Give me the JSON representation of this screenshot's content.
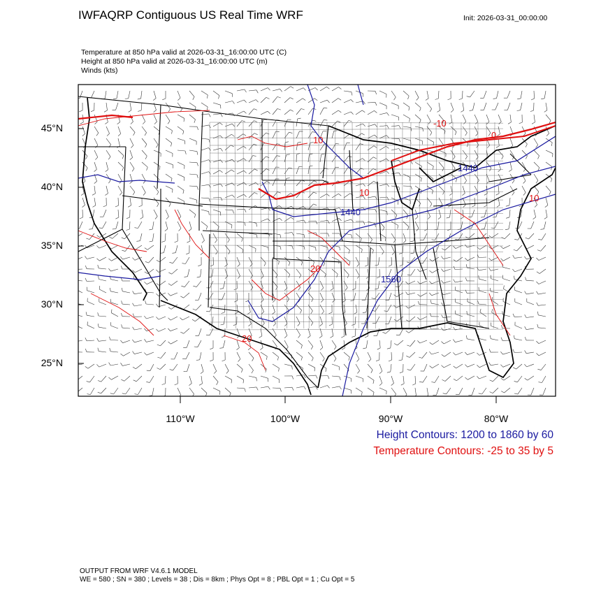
{
  "header": {
    "title": "IWFAQRP Contiguous US Real Time WRF",
    "init": "Init: 2026-03-31_00:00:00"
  },
  "fields": [
    "Temperature at 850 hPa valid at 2026-03-31_16:00:00 UTC   (C)",
    "Height at 850 hPa valid at 2026-03-31_16:00:00 UTC   (m)",
    "Winds   (kts)"
  ],
  "axes": {
    "lat_labels": [
      "45°N",
      "40°N",
      "35°N",
      "30°N",
      "25°N"
    ],
    "lon_labels": [
      "110°W",
      "100°W",
      "90°W",
      "80°W"
    ]
  },
  "contour_labels": {
    "height": [
      "1440",
      "1440",
      "1560"
    ],
    "temperature": [
      "-10",
      "0",
      "10",
      "10",
      "10",
      "20",
      "20"
    ]
  },
  "legend": {
    "height": "Height Contours: 1200 to 1860 by 60",
    "temperature": "Temperature Contours: -25 to 35 by 5"
  },
  "footer": {
    "line1": "OUTPUT FROM WRF V4.6.1 MODEL",
    "line2": "WE = 580 ; SN = 380 ; Levels = 38 ; Dis = 8km ; Phys Opt = 8 ; PBL Opt = 1 ; Cu Opt = 5"
  },
  "colors": {
    "height_contour": "#1a1aa0",
    "temperature_contour": "#e01010",
    "borders": "#000000"
  }
}
